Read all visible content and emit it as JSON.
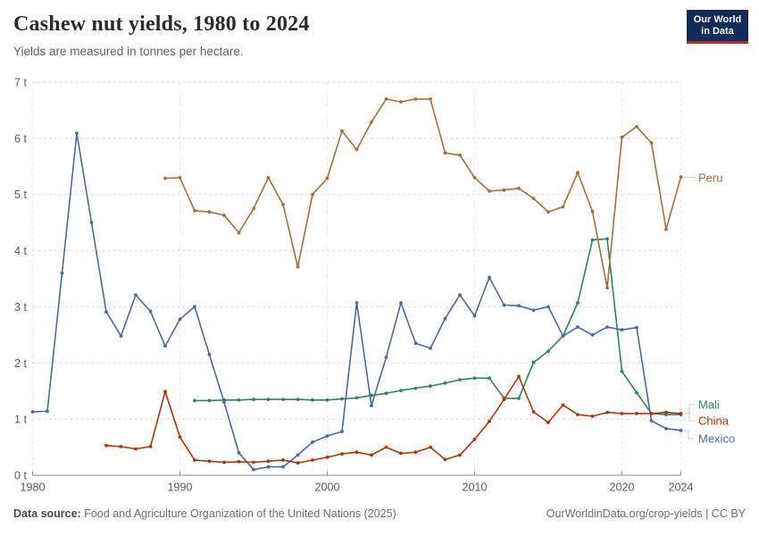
{
  "header": {
    "title": "Cashew nut yields, 1980 to 2024",
    "subtitle": "Yields are measured in tonnes per hectare.",
    "logo_line1": "Our World",
    "logo_line2": "in Data",
    "logo_bg_color": "#102d59",
    "logo_bar_color": "#c5281c"
  },
  "chart_data": {
    "type": "line",
    "title": "Cashew nut yields, 1980 to 2024",
    "ylabel": "tonnes per hectare",
    "x_range": [
      1980,
      2024
    ],
    "y_range": [
      0,
      7
    ],
    "grid": "both",
    "legend_position": "right-end-labels",
    "xticks": [
      1980,
      1990,
      2000,
      2010,
      2020,
      2024
    ],
    "xtick_labels": [
      "1980",
      "1990",
      "2000",
      "2010",
      "2020",
      "2024"
    ],
    "yticks": [
      0,
      1,
      2,
      3,
      4,
      5,
      6,
      7
    ],
    "ytick_labels": [
      "0 t",
      "1 t",
      "2 t",
      "3 t",
      "4 t",
      "5 t",
      "6 t",
      "7 t"
    ],
    "series": [
      {
        "name": "Mali",
        "color": "#2C8465",
        "years": [
          1991,
          1992,
          1993,
          1994,
          1995,
          1996,
          1997,
          1998,
          1999,
          2000,
          2001,
          2002,
          2003,
          2004,
          2005,
          2006,
          2007,
          2008,
          2009,
          2010,
          2011,
          2012,
          2013,
          2014,
          2015,
          2016,
          2017,
          2018,
          2019,
          2020,
          2021,
          2022,
          2023,
          2024
        ],
        "values": [
          1.33,
          1.33,
          1.34,
          1.34,
          1.35,
          1.35,
          1.35,
          1.35,
          1.34,
          1.34,
          1.36,
          1.38,
          1.42,
          1.46,
          1.51,
          1.55,
          1.59,
          1.64,
          1.7,
          1.73,
          1.73,
          1.37,
          1.37,
          2.01,
          2.21,
          2.48,
          3.07,
          4.19,
          4.21,
          1.85,
          1.47,
          1.1,
          1.08,
          1.08
        ]
      },
      {
        "name": "Mexico",
        "color": "#4C6A9C",
        "years": [
          1980,
          1981,
          1982,
          1983,
          1984,
          1985,
          1986,
          1987,
          1988,
          1989,
          1990,
          1991,
          1992,
          1993,
          1994,
          1995,
          1996,
          1997,
          1998,
          1999,
          2000,
          2001,
          2002,
          2003,
          2004,
          2005,
          2006,
          2007,
          2008,
          2009,
          2010,
          2011,
          2012,
          2013,
          2014,
          2015,
          2016,
          2017,
          2018,
          2019,
          2020,
          2021,
          2022,
          2023,
          2024
        ],
        "values": [
          1.13,
          1.14,
          3.6,
          6.09,
          4.5,
          2.91,
          2.48,
          3.21,
          2.92,
          2.3,
          2.78,
          3.0,
          2.15,
          1.3,
          0.4,
          0.1,
          0.15,
          0.15,
          0.36,
          0.59,
          0.7,
          0.78,
          3.07,
          1.24,
          2.1,
          3.07,
          2.35,
          2.26,
          2.79,
          3.21,
          2.84,
          3.52,
          3.03,
          3.02,
          2.94,
          3.0,
          2.48,
          2.64,
          2.5,
          2.64,
          2.59,
          2.63,
          0.97,
          0.83,
          0.8
        ]
      },
      {
        "name": "China",
        "color": "#B13507",
        "years": [
          1985,
          1986,
          1987,
          1988,
          1989,
          1990,
          1991,
          1992,
          1993,
          1994,
          1995,
          1996,
          1997,
          1998,
          1999,
          2000,
          2001,
          2002,
          2003,
          2004,
          2005,
          2006,
          2007,
          2008,
          2009,
          2010,
          2011,
          2012,
          2013,
          2014,
          2015,
          2016,
          2017,
          2018,
          2019,
          2020,
          2021,
          2022,
          2023,
          2024
        ],
        "values": [
          0.53,
          0.51,
          0.47,
          0.51,
          1.49,
          0.68,
          0.27,
          0.25,
          0.23,
          0.24,
          0.23,
          0.25,
          0.27,
          0.22,
          0.27,
          0.32,
          0.38,
          0.41,
          0.36,
          0.5,
          0.39,
          0.41,
          0.5,
          0.28,
          0.36,
          0.64,
          0.96,
          1.35,
          1.76,
          1.13,
          0.94,
          1.25,
          1.08,
          1.05,
          1.12,
          1.1,
          1.1,
          1.1,
          1.12,
          1.1
        ]
      },
      {
        "name": "Peru",
        "color": "#A2713B",
        "years": [
          1989,
          1990,
          1991,
          1992,
          1993,
          1994,
          1995,
          1996,
          1997,
          1998,
          1999,
          2000,
          2001,
          2002,
          2003,
          2004,
          2005,
          2006,
          2007,
          2008,
          2009,
          2010,
          2011,
          2012,
          2013,
          2014,
          2015,
          2016,
          2017,
          2018,
          2019,
          2020,
          2021,
          2022,
          2023,
          2024
        ],
        "values": [
          5.29,
          5.3,
          4.71,
          4.69,
          4.63,
          4.32,
          4.75,
          5.3,
          4.82,
          3.71,
          5.0,
          5.29,
          6.13,
          5.8,
          6.29,
          6.7,
          6.65,
          6.7,
          6.7,
          5.74,
          5.7,
          5.3,
          5.06,
          5.08,
          5.11,
          4.93,
          4.69,
          4.78,
          5.39,
          4.7,
          3.34,
          6.02,
          6.21,
          5.92,
          4.38,
          5.31
        ]
      }
    ]
  },
  "footer": {
    "source_label": "Data source:",
    "source_text": "Food and Agriculture Organization of the United Nations (2025)",
    "attribution": "OurWorldinData.org/crop-yields | CC BY"
  }
}
